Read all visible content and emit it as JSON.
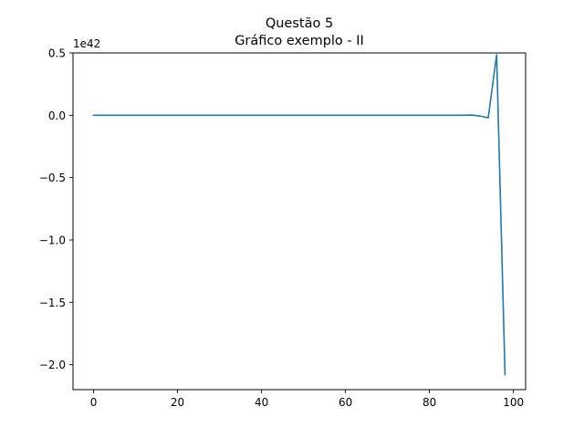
{
  "chart_data": {
    "type": "line",
    "title": "Questão 5",
    "subtitle": "Gráfico exemplo - II",
    "xlabel": "",
    "ylabel": "",
    "y_scale_label": "1e42",
    "xlim": [
      -4.9,
      102.9
    ],
    "ylim": [
      -2.2,
      0.5
    ],
    "x_ticks": [
      0,
      20,
      40,
      60,
      80,
      100
    ],
    "x_tick_labels": [
      "0",
      "20",
      "40",
      "60",
      "80",
      "100"
    ],
    "y_ticks": [
      0.5,
      0.0,
      -0.5,
      -1.0,
      -1.5,
      -2.0
    ],
    "y_tick_labels": [
      "0.5",
      "0.0",
      "−0.5",
      "−1.0",
      "−1.5",
      "−2.0"
    ],
    "grid": false,
    "series": [
      {
        "color": "#1f77b4",
        "x": [
          0,
          10,
          20,
          30,
          40,
          50,
          60,
          70,
          80,
          88,
          90,
          92,
          94,
          96,
          98
        ],
        "y": [
          0,
          0,
          0,
          0,
          0,
          0,
          0,
          0,
          0,
          0,
          0.002,
          -0.006,
          -0.02,
          0.485,
          -2.08
        ]
      }
    ]
  }
}
